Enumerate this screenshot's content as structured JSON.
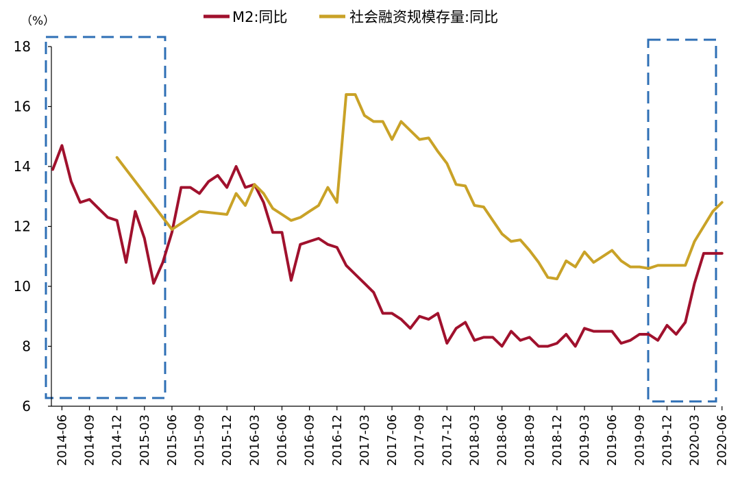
{
  "chart_data": {
    "type": "line",
    "unit_label": "（%）",
    "ylim": [
      6,
      18
    ],
    "yticks": [
      6,
      8,
      10,
      12,
      14,
      16,
      18
    ],
    "x_tick_labels": [
      "2014-06",
      "2014-09",
      "2014-12",
      "2015-03",
      "2015-06",
      "2015-09",
      "2015-12",
      "2016-03",
      "2016-06",
      "2016-09",
      "2016-12",
      "2017-03",
      "2017-06",
      "2017-09",
      "2017-12",
      "2018-03",
      "2018-06",
      "2018-09",
      "2018-12",
      "2019-03",
      "2019-06",
      "2019-09",
      "2019-12",
      "2020-03",
      "2020-06"
    ],
    "x": [
      "2014-05",
      "2014-06",
      "2014-07",
      "2014-08",
      "2014-09",
      "2014-10",
      "2014-11",
      "2014-12",
      "2015-01",
      "2015-02",
      "2015-03",
      "2015-04",
      "2015-05",
      "2015-06",
      "2015-07",
      "2015-08",
      "2015-09",
      "2015-10",
      "2015-11",
      "2015-12",
      "2016-01",
      "2016-02",
      "2016-03",
      "2016-04",
      "2016-05",
      "2016-06",
      "2016-07",
      "2016-08",
      "2016-09",
      "2016-10",
      "2016-11",
      "2016-12",
      "2017-01",
      "2017-02",
      "2017-03",
      "2017-04",
      "2017-05",
      "2017-06",
      "2017-07",
      "2017-08",
      "2017-09",
      "2017-10",
      "2017-11",
      "2017-12",
      "2018-01",
      "2018-02",
      "2018-03",
      "2018-04",
      "2018-05",
      "2018-06",
      "2018-07",
      "2018-08",
      "2018-09",
      "2018-10",
      "2018-11",
      "2018-12",
      "2019-01",
      "2019-02",
      "2019-03",
      "2019-04",
      "2019-05",
      "2019-06",
      "2019-07",
      "2019-08",
      "2019-09",
      "2019-10",
      "2019-11",
      "2019-12",
      "2020-01",
      "2020-02",
      "2020-03",
      "2020-04",
      "2020-05",
      "2020-06"
    ],
    "series": [
      {
        "name": "M2:同比",
        "color": "#a0112d",
        "values": [
          13.9,
          14.7,
          13.5,
          12.8,
          12.9,
          12.6,
          12.3,
          12.2,
          10.8,
          12.5,
          11.6,
          10.1,
          10.8,
          11.8,
          13.3,
          13.3,
          13.1,
          13.5,
          13.7,
          13.3,
          14.0,
          13.3,
          13.4,
          12.8,
          11.8,
          11.8,
          10.2,
          11.4,
          11.5,
          11.6,
          11.4,
          11.3,
          10.7,
          10.4,
          10.1,
          9.8,
          9.1,
          9.1,
          8.9,
          8.6,
          9.0,
          8.9,
          9.1,
          8.1,
          8.6,
          8.8,
          8.2,
          8.3,
          8.3,
          8.0,
          8.5,
          8.2,
          8.3,
          8.0,
          8.0,
          8.1,
          8.4,
          8.0,
          8.6,
          8.5,
          8.5,
          8.5,
          8.1,
          8.2,
          8.4,
          8.4,
          8.2,
          8.7,
          8.4,
          8.8,
          10.1,
          11.1,
          11.1,
          11.1
        ]
      },
      {
        "name": "社会融资规模存量:同比",
        "color": "#c9a227",
        "values": [
          null,
          null,
          null,
          null,
          null,
          null,
          null,
          14.3,
          null,
          null,
          null,
          null,
          null,
          11.9,
          null,
          null,
          12.5,
          null,
          null,
          12.4,
          13.1,
          12.7,
          13.4,
          13.1,
          12.6,
          12.4,
          12.2,
          12.3,
          12.5,
          12.7,
          13.3,
          12.8,
          16.4,
          16.4,
          15.7,
          15.5,
          15.5,
          14.9,
          15.5,
          15.2,
          14.9,
          14.95,
          14.5,
          14.1,
          13.4,
          13.35,
          12.7,
          12.65,
          12.2,
          11.75,
          11.5,
          11.55,
          11.2,
          10.8,
          10.3,
          10.25,
          10.85,
          10.65,
          11.15,
          10.8,
          11.0,
          11.2,
          10.85,
          10.65,
          10.65,
          10.6,
          10.7,
          10.7,
          10.7,
          10.7,
          11.5,
          12.0,
          12.5,
          12.8
        ]
      }
    ],
    "grid": false,
    "legend_position": "top-center"
  }
}
